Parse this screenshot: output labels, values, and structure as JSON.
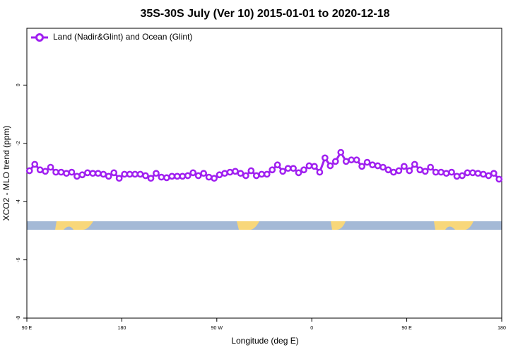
{
  "chart_data": {
    "type": "line",
    "title": "35S-30S July (Ver 10)   2015-01-01 to 2020-12-18",
    "x_label": "Longitude (deg E)",
    "y_label": "XCO2 - MLO trend (ppm)",
    "xlim": [
      90,
      540
    ],
    "xticks": [
      {
        "value": 90,
        "label": "90 E"
      },
      180,
      {
        "value": 270,
        "label": "90 W"
      },
      {
        "value": 360,
        "label": "0"
      },
      {
        "value": 450,
        "label": "90 E"
      },
      {
        "value": 540,
        "label": "180"
      }
    ],
    "ylim": [
      -8,
      1.95
    ],
    "yticks": [
      0,
      -2,
      -4,
      -6,
      -8
    ],
    "legend": "top-left",
    "x": [
      92.5,
      97.5,
      102.5,
      107.5,
      112.5,
      117.5,
      122.5,
      127.5,
      132.5,
      137.5,
      142.5,
      147.5,
      152.5,
      157.5,
      162.5,
      167.5,
      172.5,
      177.5,
      182.5,
      187.5,
      192.5,
      197.5,
      202.5,
      207.5,
      212.5,
      217.5,
      222.5,
      227.5,
      232.5,
      237.5,
      242.5,
      247.5,
      252.5,
      257.5,
      262.5,
      267.5,
      272.5,
      277.5,
      282.5,
      287.5,
      292.5,
      297.5,
      302.5,
      307.5,
      312.5,
      317.5,
      322.5,
      327.5,
      332.5,
      337.5,
      342.5,
      347.5,
      352.5,
      357.5,
      362.5,
      367.5,
      372.5,
      377.5,
      382.5,
      387.5,
      392.5,
      397.5,
      402.5,
      407.5,
      412.5,
      417.5,
      422.5,
      427.5,
      432.5,
      437.5,
      442.5,
      447.5,
      452.5,
      457.5,
      462.5,
      467.5,
      472.5,
      477.5,
      482.5,
      487.5,
      492.5,
      497.5,
      502.5,
      507.5,
      512.5,
      517.5,
      522.5,
      527.5,
      532.5,
      537.5
    ],
    "series": [
      {
        "name": "Land (Nadir&Glint) and Ocean (Glint)",
        "color": "#a020f0",
        "values": [
          -2.94,
          -2.72,
          -2.91,
          -2.96,
          -2.82,
          -2.99,
          -2.99,
          -3.03,
          -2.99,
          -3.13,
          -3.08,
          -3.01,
          -3.03,
          -3.03,
          -3.06,
          -3.13,
          -3.01,
          -3.2,
          -3.06,
          -3.06,
          -3.06,
          -3.06,
          -3.11,
          -3.2,
          -3.03,
          -3.16,
          -3.18,
          -3.13,
          -3.13,
          -3.13,
          -3.11,
          -3.01,
          -3.11,
          -3.03,
          -3.16,
          -3.2,
          -3.08,
          -3.03,
          -2.99,
          -2.96,
          -3.03,
          -3.11,
          -2.94,
          -3.11,
          -3.06,
          -3.06,
          -2.91,
          -2.74,
          -2.96,
          -2.86,
          -2.86,
          -3.01,
          -2.91,
          -2.77,
          -2.79,
          -2.99,
          -2.5,
          -2.77,
          -2.62,
          -2.31,
          -2.62,
          -2.57,
          -2.57,
          -2.79,
          -2.65,
          -2.74,
          -2.77,
          -2.82,
          -2.91,
          -2.99,
          -2.94,
          -2.79,
          -2.94,
          -2.72,
          -2.91,
          -2.96,
          -2.82,
          -2.99,
          -2.99,
          -3.03,
          -2.99,
          -3.13,
          -3.11,
          -3.01,
          -3.01,
          -3.03,
          -3.06,
          -3.11,
          -3.03,
          -3.23
        ]
      }
    ]
  }
}
